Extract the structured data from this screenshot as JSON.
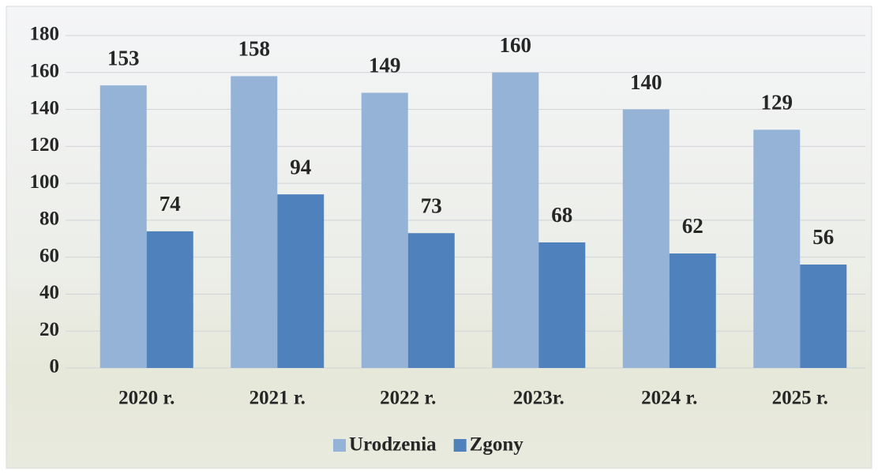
{
  "chart_data": {
    "type": "bar",
    "categories": [
      "2020 r.",
      "2021 r.",
      "2022 r.",
      "2023r.",
      "2024 r.",
      "2025 r."
    ],
    "series": [
      {
        "name": "Urodzenia",
        "color": "#95b3d7",
        "values": [
          153,
          158,
          149,
          160,
          140,
          129
        ]
      },
      {
        "name": "Zgony",
        "color": "#4f81bd",
        "values": [
          74,
          94,
          73,
          68,
          62,
          56
        ]
      }
    ],
    "ylim": [
      0,
      180
    ],
    "yticks": [
      0,
      20,
      40,
      60,
      80,
      100,
      120,
      140,
      160,
      180
    ],
    "grid": true,
    "legend": "bottom"
  }
}
